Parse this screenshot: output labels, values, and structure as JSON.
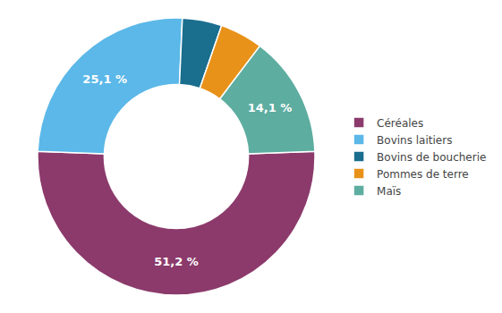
{
  "chart_data": {
    "type": "donut",
    "categories": [
      "Céréales",
      "Bovins laitiers",
      "Bovins de boucherie",
      "Pommes de terre",
      "Maïs"
    ],
    "values": [
      51.2,
      25.1,
      4.6,
      5.0,
      14.1
    ],
    "value_labels": [
      "51,2 %",
      "25,1 %",
      null,
      null,
      "14,1 %"
    ],
    "colors": [
      "#8B3A6B",
      "#5BB8E8",
      "#1A6E8E",
      "#E8921A",
      "#5DADA0"
    ],
    "data_labels": true,
    "legend": "right"
  }
}
